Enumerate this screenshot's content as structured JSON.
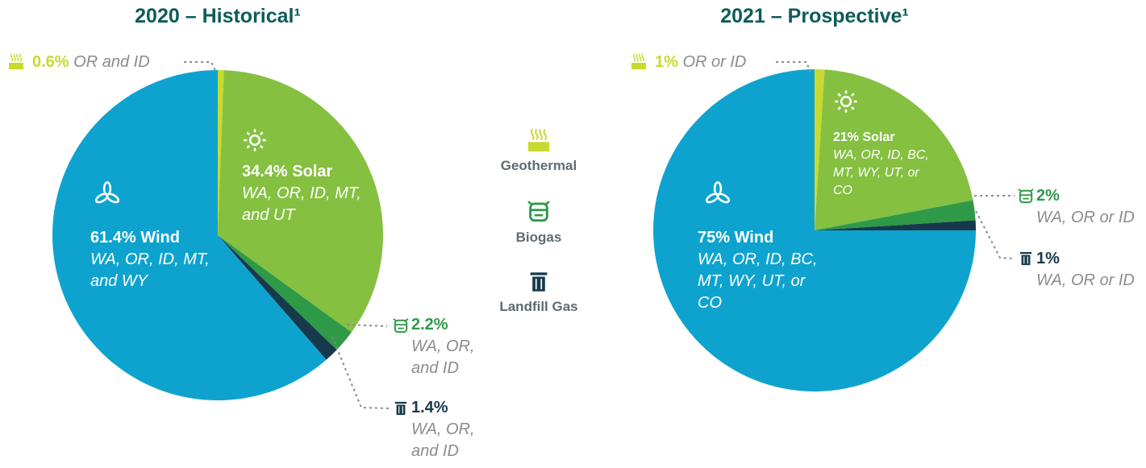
{
  "chart_data": [
    {
      "type": "pie",
      "title": "2020 – Historical¹",
      "categories": [
        "Geothermal",
        "Solar",
        "Biogas",
        "Landfill Gas",
        "Wind"
      ],
      "values": [
        0.6,
        34.4,
        2.2,
        1.4,
        61.4
      ],
      "value_labels": [
        "0.6%",
        "34.4%",
        "2.2%",
        "1.4%",
        "61.4%"
      ],
      "regions": [
        "OR and ID",
        "WA, OR, ID, MT, and UT",
        "WA, OR, and ID",
        "WA, OR, and ID",
        "WA, OR, ID, MT, and WY"
      ],
      "colors": [
        "#c8d92f",
        "#85c041",
        "#2e9a48",
        "#163a4c",
        "#0ea3cf"
      ]
    },
    {
      "type": "pie",
      "title": "2021 – Prospective¹",
      "categories": [
        "Geothermal",
        "Solar",
        "Biogas",
        "Landfill Gas",
        "Wind"
      ],
      "values": [
        1,
        21,
        2,
        1,
        75
      ],
      "value_labels": [
        "1%",
        "21%",
        "2%",
        "1%",
        "75%"
      ],
      "regions": [
        "OR or ID",
        "WA, OR, ID, BC, MT, WY, UT, or CO",
        "WA, OR or ID",
        "WA, OR or ID",
        "WA, OR, ID, BC, MT, WY, UT, or CO"
      ],
      "colors": [
        "#c8d92f",
        "#85c041",
        "#2e9a48",
        "#163a4c",
        "#0ea3cf"
      ]
    }
  ]
}
